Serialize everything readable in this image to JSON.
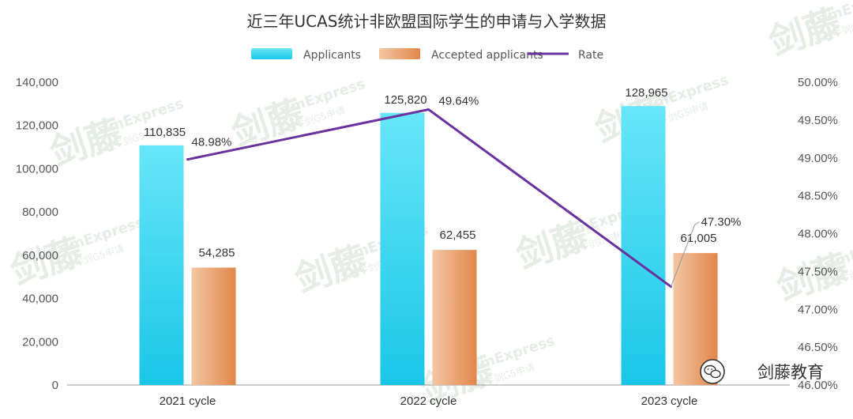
{
  "chart_data": {
    "type": "bar",
    "title": "近三年UCAS统计非欧盟国际学生的申请与入学数据",
    "categories": [
      "2021 cycle",
      "2022 cycle",
      "2023 cycle"
    ],
    "series": [
      {
        "name": "Applicants",
        "type": "bar",
        "axis": "left",
        "values": [
          110835,
          125820,
          128965
        ],
        "labels": [
          "110,835",
          "125,820",
          "128,965"
        ]
      },
      {
        "name": "Accepted applicants",
        "type": "bar",
        "axis": "left",
        "values": [
          54285,
          62455,
          61005
        ],
        "labels": [
          "54,285",
          "62,455",
          "61,005"
        ]
      },
      {
        "name": "Rate",
        "type": "line",
        "axis": "right",
        "values": [
          48.98,
          49.64,
          47.3
        ],
        "labels": [
          "48.98%",
          "49.64%",
          "47.30%"
        ]
      }
    ],
    "y_left": {
      "min": 0,
      "max": 140000,
      "ticks": [
        "0",
        "20,000",
        "40,000",
        "60,000",
        "80,000",
        "100,000",
        "120,000",
        "140,000"
      ]
    },
    "y_right": {
      "min": 46.0,
      "max": 50.0,
      "ticks": [
        "46.00%",
        "46.50%",
        "47.00%",
        "47.50%",
        "48.00%",
        "48.50%",
        "49.00%",
        "49.50%",
        "50.00%"
      ]
    },
    "grid": false,
    "legend_position": "top"
  },
  "colors": {
    "applicants_top": "#67e6f8",
    "applicants_bottom": "#1ac6e8",
    "accepted_light": "#f3c6a3",
    "accepted_dark": "#e2864a",
    "rate_line": "#6a329f"
  },
  "branding": {
    "wechat_icon": "wechat-icon",
    "text": "剑藤教育"
  },
  "watermark": {
    "logo_text": "剑藤",
    "english": "CamExpress",
    "tagline": "专注牛剑G5申请"
  }
}
